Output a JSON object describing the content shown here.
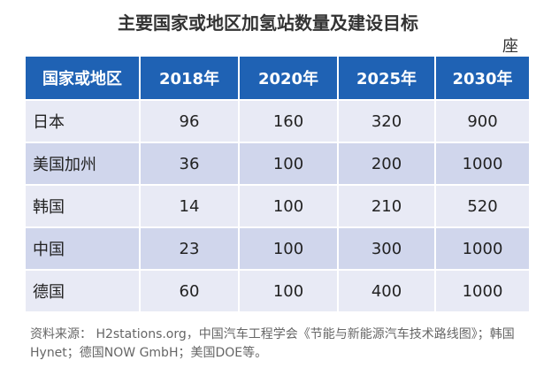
{
  "header": {
    "title": "主要国家或地区加氢站数量及建设目标",
    "unit": "座"
  },
  "table": {
    "columns": [
      "国家或地区",
      "2018年",
      "2020年",
      "2025年",
      "2030年"
    ],
    "rows": [
      [
        "日本",
        "96",
        "160",
        "320",
        "900"
      ],
      [
        "美国加州",
        "36",
        "100",
        "200",
        "1000"
      ],
      [
        "韩国",
        "14",
        "100",
        "210",
        "520"
      ],
      [
        "中国",
        "23",
        "100",
        "300",
        "1000"
      ],
      [
        "德国",
        "60",
        "100",
        "400",
        "1000"
      ]
    ]
  },
  "footer": {
    "source": "资料来源： H2stations.org，中国汽车工程学会《节能与新能源汽车技术路线图》；韩国Hynet；德国NOW GmbH；美国DOE等。"
  }
}
